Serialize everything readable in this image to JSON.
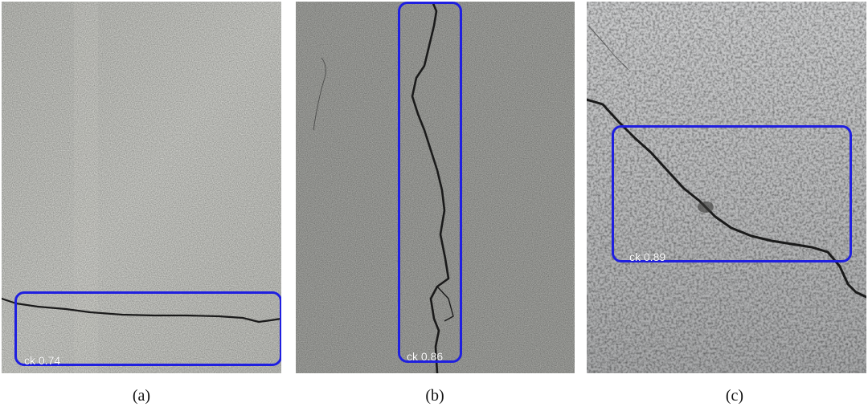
{
  "figure": {
    "panels": [
      {
        "caption": "(a)",
        "detection": {
          "label": "ck 0.74",
          "class": "ck",
          "confidence": 0.74
        }
      },
      {
        "caption": "(b)",
        "detection": {
          "label": "ck 0.86",
          "class": "ck",
          "confidence": 0.86
        }
      },
      {
        "caption": "(c)",
        "detection": {
          "label": "ck 0.89",
          "class": "ck",
          "confidence": 0.89
        }
      }
    ]
  },
  "colors": {
    "bbox": "#1f1fe0",
    "concrete_a": "#c6c7c2",
    "concrete_b": "#a9aaa6",
    "concrete_c": "#b9babb",
    "crack": "#1a1a1a"
  }
}
